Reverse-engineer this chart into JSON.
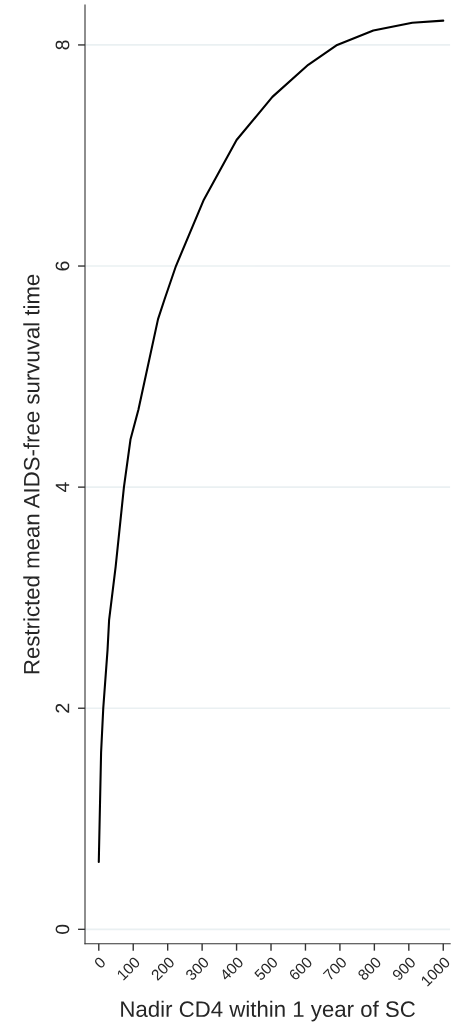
{
  "chart_data": {
    "type": "line",
    "xlabel": "Nadir CD4 within 1 year of SC",
    "ylabel": "Restricted mean AIDS-free survuval time",
    "series": [
      {
        "color": "#000000",
        "x": [
          0,
          6.7,
          13,
          25.5,
          30,
          49,
          73,
          92,
          115,
          172,
          191,
          224,
          305,
          400,
          504,
          608,
          692,
          797,
          910,
          1000
        ],
        "values": [
          0.61,
          1.6,
          2.0,
          2.53,
          2.8,
          3.28,
          4.0,
          4.43,
          4.7,
          5.52,
          5.7,
          6.0,
          6.6,
          7.14,
          7.53,
          7.82,
          8.0,
          8.13,
          8.2,
          8.22
        ]
      }
    ],
    "xlim": [
      -40,
      1020
    ],
    "ylim": [
      -0.13,
      8.36
    ],
    "xticks": [
      0,
      100,
      200,
      300,
      400,
      500,
      600,
      700,
      800,
      900,
      1000
    ],
    "yticks": [
      0,
      2,
      4,
      6,
      8
    ],
    "grid": "y",
    "marker": "none",
    "line_style": "solid"
  }
}
